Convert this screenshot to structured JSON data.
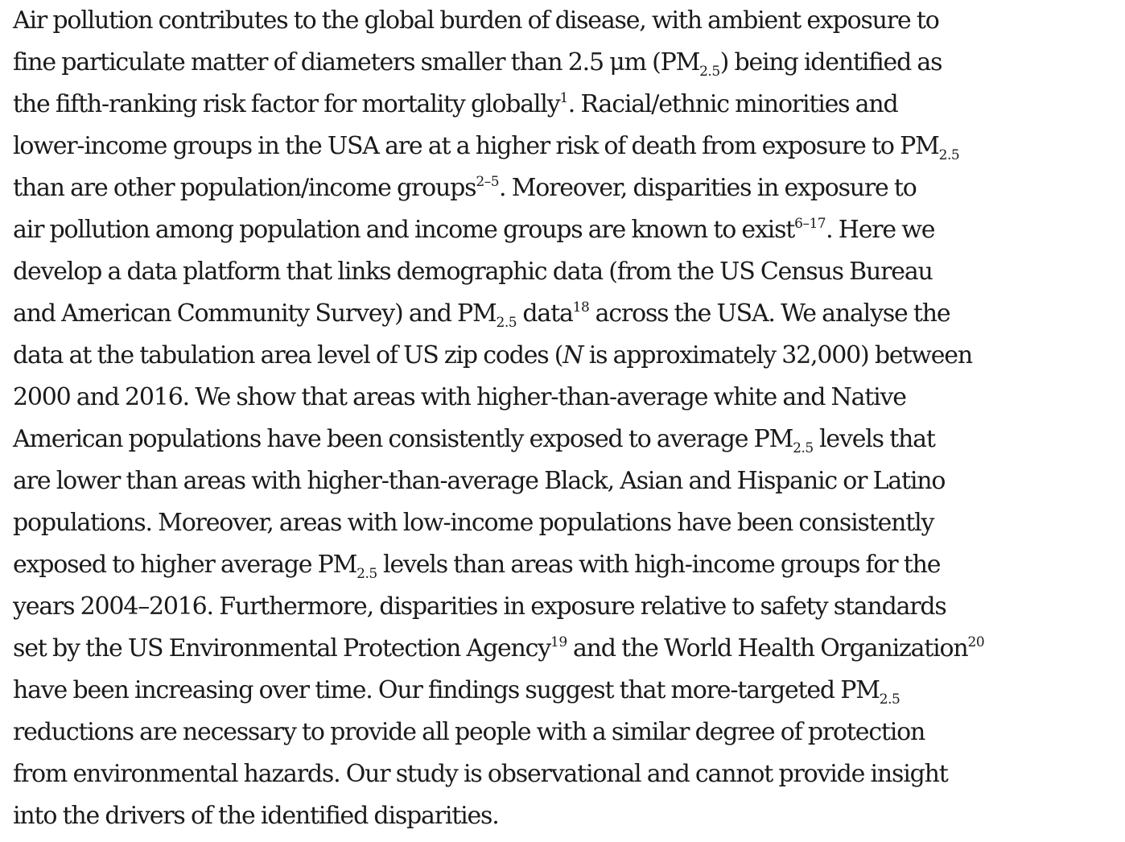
{
  "abstract": {
    "lines": [
      [
        {
          "t": "Air pollution contributes to the global burden of disease, with ambient exposure to"
        }
      ],
      [
        {
          "t": "fine particulate matter of diameters smaller than 2.5 μm (PM"
        },
        {
          "t": "2.5",
          "style": "sub"
        },
        {
          "t": ") being identified as"
        }
      ],
      [
        {
          "t": "the fifth-ranking risk factor for mortality globally"
        },
        {
          "t": "1",
          "style": "sup"
        },
        {
          "t": ". Racial/ethnic minorities and"
        }
      ],
      [
        {
          "t": "lower-income groups in the USA are at a higher risk of death from exposure to PM"
        },
        {
          "t": "2.5",
          "style": "sub"
        }
      ],
      [
        {
          "t": "than are other population/income groups"
        },
        {
          "t": "2–5",
          "style": "sup"
        },
        {
          "t": ". Moreover, disparities in exposure to"
        }
      ],
      [
        {
          "t": "air pollution among population and income groups are known to exist"
        },
        {
          "t": "6–17",
          "style": "sup"
        },
        {
          "t": ". Here we"
        }
      ],
      [
        {
          "t": "develop a data platform that links demographic data (from the US Census Bureau"
        }
      ],
      [
        {
          "t": "and American Community Survey) and PM"
        },
        {
          "t": "2.5",
          "style": "sub"
        },
        {
          "t": " data"
        },
        {
          "t": "18",
          "style": "sup"
        },
        {
          "t": " across the USA. We analyse the"
        }
      ],
      [
        {
          "t": "data at the tabulation area level of US zip codes ("
        },
        {
          "t": "N",
          "style": "em"
        },
        {
          "t": " is approximately 32,000) between"
        }
      ],
      [
        {
          "t": "2000 and 2016. We show that areas with higher-than-average white and Native"
        }
      ],
      [
        {
          "t": "American populations have been consistently exposed to average PM"
        },
        {
          "t": "2.5",
          "style": "sub"
        },
        {
          "t": " levels that"
        }
      ],
      [
        {
          "t": "are lower than areas with higher-than-average Black, Asian and Hispanic or Latino"
        }
      ],
      [
        {
          "t": "populations. Moreover, areas with low-income populations have been consistently"
        }
      ],
      [
        {
          "t": "exposed to higher average PM"
        },
        {
          "t": "2.5",
          "style": "sub"
        },
        {
          "t": " levels than areas with high-income groups for the"
        }
      ],
      [
        {
          "t": "years 2004–2016. Furthermore, disparities in exposure relative to safety standards"
        }
      ],
      [
        {
          "t": "set by the US Environmental Protection Agency"
        },
        {
          "t": "19",
          "style": "sup"
        },
        {
          "t": " and the World Health Organization"
        },
        {
          "t": "20",
          "style": "sup"
        }
      ],
      [
        {
          "t": "have been increasing over time. Our findings suggest that more-targeted PM"
        },
        {
          "t": "2.5",
          "style": "sub"
        }
      ],
      [
        {
          "t": "reductions are necessary to provide all people with a similar degree of protection"
        }
      ],
      [
        {
          "t": "from environmental hazards. Our study is observational and cannot provide insight"
        }
      ],
      [
        {
          "t": "into the drivers of the identified disparities."
        }
      ]
    ]
  }
}
